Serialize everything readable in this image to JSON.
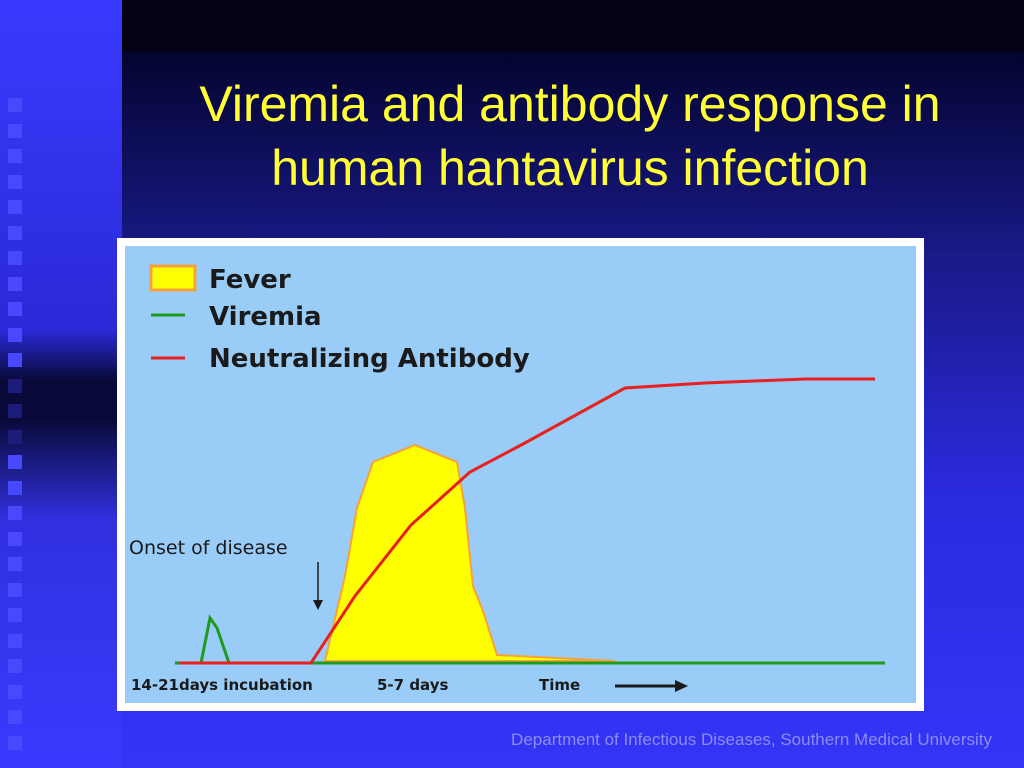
{
  "slide": {
    "title_line1": "Viremia and antibody response in",
    "title_line2": "human hantavirus infection",
    "footer": "Department of Infectious Diseases, Southern Medical University"
  },
  "colors": {
    "title": "#ffff33",
    "chart_background": "#99ccf6",
    "fever_fill": "#ffff00",
    "fever_stroke": "#f6a23c",
    "viremia": "#1f9a1f",
    "antibody": "#e82020"
  },
  "chart_data": {
    "type": "area",
    "legend": {
      "fever": "Fever",
      "viremia": "Viremia",
      "antibody": "Neutralizing Antibody",
      "placement": "top-left"
    },
    "annotation": "Onset of disease",
    "x_labels": [
      "14-21days incubation",
      "5-7 days",
      "Time"
    ],
    "x_arrow": "right-arrow-icon",
    "grid": false
  }
}
